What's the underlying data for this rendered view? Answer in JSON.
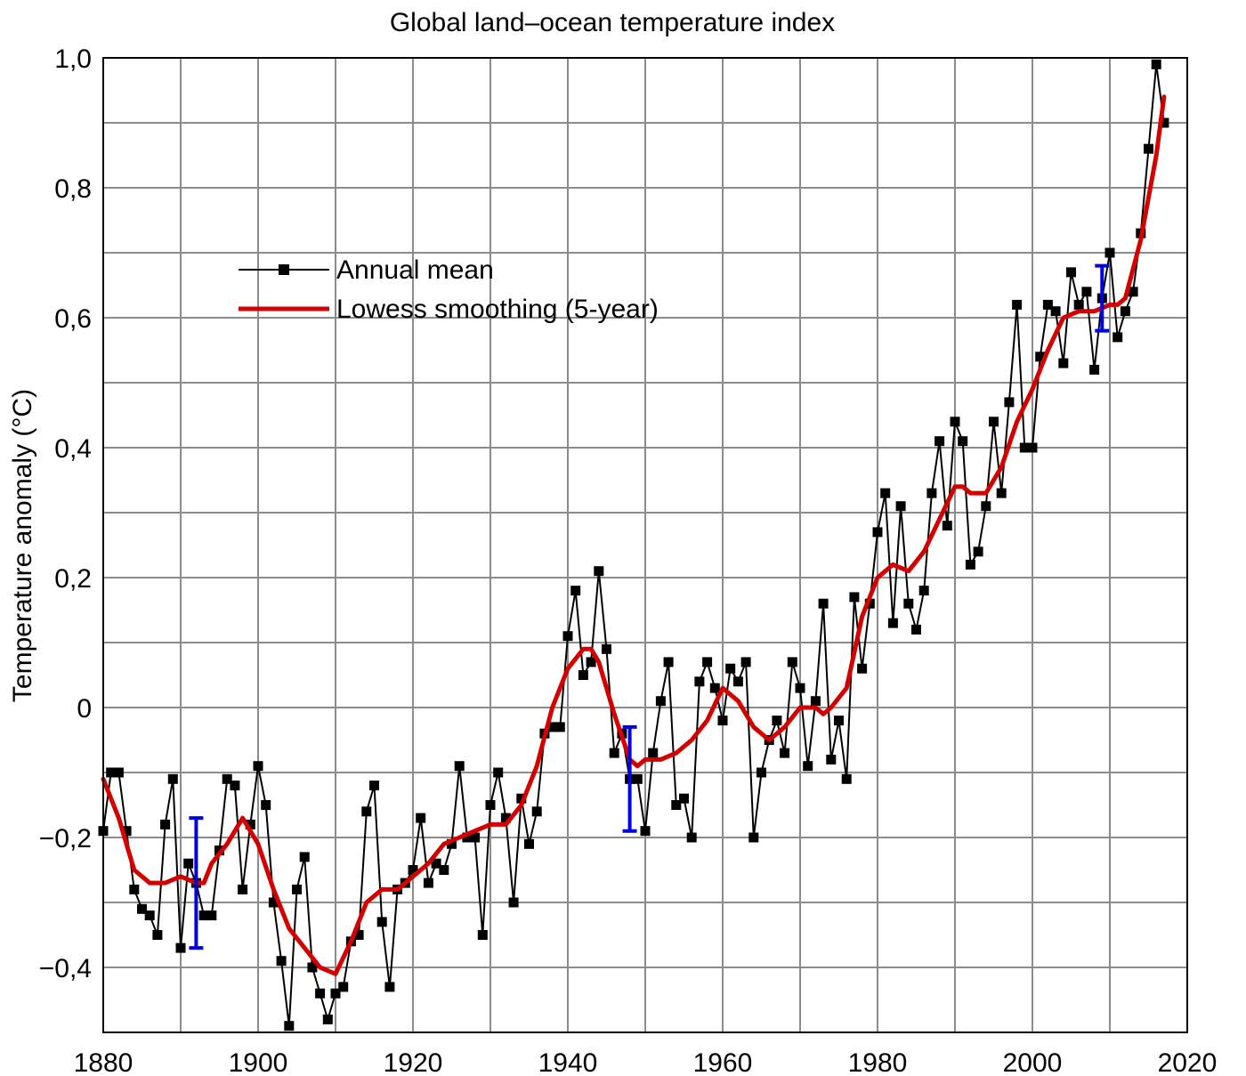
{
  "chart_data": {
    "type": "line",
    "title": "Global land–ocean temperature index",
    "xlabel": "",
    "ylabel": "Temperature anomaly (°C)",
    "xlim": [
      1880,
      2020
    ],
    "ylim": [
      -0.5,
      1.0
    ],
    "x_ticks": [
      1880,
      1900,
      1920,
      1940,
      1960,
      1980,
      2000,
      2020
    ],
    "x_tick_labels": [
      "1880",
      "1900",
      "1920",
      "1940",
      "1960",
      "1980",
      "2000",
      "2020"
    ],
    "y_ticks": [
      -0.4,
      -0.2,
      0,
      0.2,
      0.4,
      0.6,
      0.8,
      1.0
    ],
    "y_tick_labels": [
      "−0,4",
      "−0,2",
      "0",
      "0,2",
      "0,4",
      "0,6",
      "0,8",
      "1,0"
    ],
    "grid": true,
    "legend_position": "upper-left",
    "series": [
      {
        "name": "Annual mean",
        "color": "#000000",
        "marker": "square",
        "x": [
          1880,
          1881,
          1882,
          1883,
          1884,
          1885,
          1886,
          1887,
          1888,
          1889,
          1890,
          1891,
          1892,
          1893,
          1894,
          1895,
          1896,
          1897,
          1898,
          1899,
          1900,
          1901,
          1902,
          1903,
          1904,
          1905,
          1906,
          1907,
          1908,
          1909,
          1910,
          1911,
          1912,
          1913,
          1914,
          1915,
          1916,
          1917,
          1918,
          1919,
          1920,
          1921,
          1922,
          1923,
          1924,
          1925,
          1926,
          1927,
          1928,
          1929,
          1930,
          1931,
          1932,
          1933,
          1934,
          1935,
          1936,
          1937,
          1938,
          1939,
          1940,
          1941,
          1942,
          1943,
          1944,
          1945,
          1946,
          1947,
          1948,
          1949,
          1950,
          1951,
          1952,
          1953,
          1954,
          1955,
          1956,
          1957,
          1958,
          1959,
          1960,
          1961,
          1962,
          1963,
          1964,
          1965,
          1966,
          1967,
          1968,
          1969,
          1970,
          1971,
          1972,
          1973,
          1974,
          1975,
          1976,
          1977,
          1978,
          1979,
          1980,
          1981,
          1982,
          1983,
          1984,
          1985,
          1986,
          1987,
          1988,
          1989,
          1990,
          1991,
          1992,
          1993,
          1994,
          1995,
          1996,
          1997,
          1998,
          1999,
          2000,
          2001,
          2002,
          2003,
          2004,
          2005,
          2006,
          2007,
          2008,
          2009,
          2010,
          2011,
          2012,
          2013,
          2014,
          2015,
          2016,
          2017
        ],
        "y": [
          -0.19,
          -0.1,
          -0.1,
          -0.19,
          -0.28,
          -0.31,
          -0.32,
          -0.35,
          -0.18,
          -0.11,
          -0.37,
          -0.24,
          -0.27,
          -0.32,
          -0.32,
          -0.22,
          -0.11,
          -0.12,
          -0.28,
          -0.18,
          -0.09,
          -0.15,
          -0.3,
          -0.39,
          -0.49,
          -0.28,
          -0.23,
          -0.4,
          -0.44,
          -0.48,
          -0.44,
          -0.43,
          -0.36,
          -0.35,
          -0.16,
          -0.12,
          -0.33,
          -0.43,
          -0.28,
          -0.27,
          -0.25,
          -0.17,
          -0.27,
          -0.24,
          -0.25,
          -0.21,
          -0.09,
          -0.2,
          -0.2,
          -0.35,
          -0.15,
          -0.1,
          -0.17,
          -0.3,
          -0.14,
          -0.21,
          -0.16,
          -0.04,
          -0.03,
          -0.03,
          0.11,
          0.18,
          0.05,
          0.07,
          0.21,
          0.09,
          -0.07,
          -0.04,
          -0.11,
          -0.11,
          -0.19,
          -0.07,
          0.01,
          0.07,
          -0.15,
          -0.14,
          -0.2,
          0.04,
          0.07,
          0.03,
          -0.02,
          0.06,
          0.04,
          0.07,
          -0.2,
          -0.1,
          -0.05,
          -0.02,
          -0.07,
          0.07,
          0.03,
          -0.09,
          0.01,
          0.16,
          -0.08,
          -0.02,
          -0.11,
          0.17,
          0.06,
          0.16,
          0.27,
          0.33,
          0.13,
          0.31,
          0.16,
          0.12,
          0.18,
          0.33,
          0.41,
          0.28,
          0.44,
          0.41,
          0.22,
          0.24,
          0.31,
          0.44,
          0.33,
          0.47,
          0.62,
          0.4,
          0.4,
          0.54,
          0.62,
          0.61,
          0.53,
          0.67,
          0.62,
          0.64,
          0.52,
          0.63,
          0.7,
          0.57,
          0.61,
          0.64,
          0.73,
          0.86,
          0.99,
          0.9
        ]
      },
      {
        "name": "Lowess smoothing (5-year)",
        "color": "#d40000",
        "marker": "none",
        "x": [
          1880,
          1882,
          1884,
          1886,
          1888,
          1890,
          1892,
          1893,
          1894,
          1896,
          1898,
          1900,
          1902,
          1904,
          1906,
          1908,
          1910,
          1912,
          1914,
          1916,
          1918,
          1920,
          1922,
          1924,
          1926,
          1928,
          1930,
          1932,
          1934,
          1936,
          1938,
          1940,
          1942,
          1943,
          1944,
          1946,
          1948,
          1949,
          1950,
          1952,
          1954,
          1956,
          1958,
          1960,
          1962,
          1964,
          1966,
          1968,
          1970,
          1972,
          1973,
          1974,
          1976,
          1978,
          1980,
          1982,
          1984,
          1986,
          1988,
          1990,
          1991,
          1992,
          1994,
          1996,
          1998,
          2000,
          2002,
          2004,
          2006,
          2008,
          2010,
          2011,
          2012,
          2014,
          2016,
          2017
        ],
        "y": [
          -0.11,
          -0.17,
          -0.25,
          -0.27,
          -0.27,
          -0.26,
          -0.27,
          -0.27,
          -0.24,
          -0.21,
          -0.17,
          -0.21,
          -0.28,
          -0.34,
          -0.37,
          -0.4,
          -0.41,
          -0.36,
          -0.3,
          -0.28,
          -0.28,
          -0.26,
          -0.24,
          -0.21,
          -0.2,
          -0.19,
          -0.18,
          -0.18,
          -0.15,
          -0.09,
          0.0,
          0.06,
          0.09,
          0.09,
          0.07,
          -0.01,
          -0.08,
          -0.09,
          -0.08,
          -0.08,
          -0.07,
          -0.05,
          -0.02,
          0.03,
          0.01,
          -0.03,
          -0.05,
          -0.03,
          0.0,
          0.0,
          -0.01,
          0.0,
          0.03,
          0.14,
          0.2,
          0.22,
          0.21,
          0.24,
          0.29,
          0.34,
          0.34,
          0.33,
          0.33,
          0.37,
          0.44,
          0.49,
          0.55,
          0.6,
          0.61,
          0.61,
          0.62,
          0.62,
          0.63,
          0.72,
          0.85,
          0.94
        ]
      }
    ],
    "error_bars": {
      "color": "#0000e0",
      "items": [
        {
          "x": 1892,
          "low": -0.37,
          "high": -0.17
        },
        {
          "x": 1948,
          "low": -0.19,
          "high": -0.03
        },
        {
          "x": 2009,
          "low": 0.58,
          "high": 0.68
        }
      ]
    }
  }
}
